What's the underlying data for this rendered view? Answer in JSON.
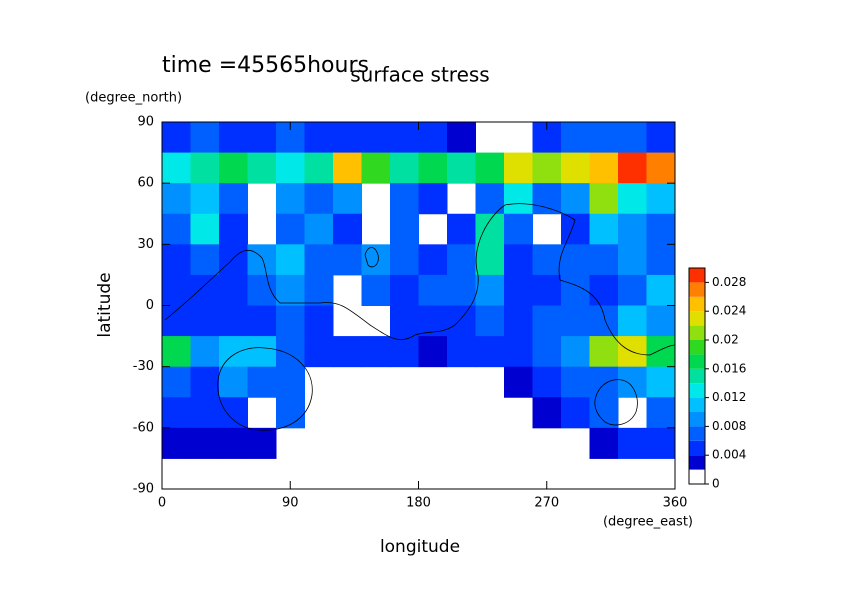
{
  "chart_data": {
    "type": "contour",
    "title": "surface stress",
    "subtitle": "time =45565hours",
    "x_label": "longitude",
    "y_label": "latitude",
    "x_units": "(degree_east)",
    "y_units": "(degree_north)",
    "xlim": [
      0,
      360
    ],
    "ylim": [
      -90,
      90
    ],
    "xticks": [
      0,
      90,
      180,
      270,
      360
    ],
    "yticks": [
      -90,
      -60,
      -30,
      0,
      30,
      60,
      90
    ],
    "x": [
      10,
      30,
      50,
      70,
      90,
      110,
      130,
      150,
      170,
      190,
      210,
      230,
      250,
      270,
      290,
      310,
      330,
      350
    ],
    "y": [
      82.5,
      67.5,
      52.5,
      37.5,
      22.5,
      7.5,
      -7.5,
      -22.5,
      -37.5,
      -52.5,
      -67.5,
      -82.5
    ],
    "z": [
      [
        0.005,
        0.006,
        0.005,
        0.005,
        0.006,
        0.005,
        0.004,
        0.004,
        0.005,
        0.004,
        0.003,
        null,
        null,
        0.005,
        0.006,
        0.007,
        0.006,
        0.005
      ],
      [
        0.012,
        0.014,
        0.016,
        0.014,
        0.012,
        0.014,
        0.024,
        0.018,
        0.014,
        0.016,
        0.014,
        0.016,
        0.022,
        0.02,
        0.022,
        0.024,
        0.03,
        0.026
      ],
      [
        0.008,
        0.01,
        0.006,
        null,
        0.008,
        0.006,
        0.008,
        null,
        0.006,
        0.005,
        null,
        0.006,
        0.012,
        0.006,
        0.008,
        0.02,
        0.012,
        0.01
      ],
      [
        0.006,
        0.012,
        0.004,
        null,
        0.006,
        0.008,
        0.004,
        null,
        0.006,
        null,
        0.004,
        0.014,
        0.006,
        null,
        0.004,
        0.01,
        0.008,
        0.006
      ],
      [
        0.004,
        0.006,
        0.004,
        0.008,
        0.01,
        0.006,
        0.006,
        0.008,
        0.006,
        0.004,
        0.006,
        0.014,
        0.004,
        0.006,
        0.006,
        0.006,
        0.008,
        0.006
      ],
      [
        0.004,
        0.004,
        0.005,
        0.006,
        0.008,
        0.006,
        null,
        0.006,
        0.004,
        0.006,
        0.006,
        0.008,
        0.004,
        0.004,
        0.006,
        0.004,
        0.006,
        0.01
      ],
      [
        0.004,
        0.004,
        0.004,
        0.004,
        0.006,
        0.004,
        null,
        null,
        0.004,
        0.004,
        0.005,
        0.006,
        0.004,
        0.006,
        0.006,
        0.006,
        0.01,
        0.008
      ],
      [
        0.016,
        0.008,
        0.01,
        0.01,
        0.006,
        0.004,
        0.004,
        0.004,
        0.004,
        0.003,
        0.004,
        0.004,
        0.004,
        0.006,
        0.008,
        0.02,
        0.022,
        0.016
      ],
      [
        0.006,
        0.004,
        0.008,
        0.006,
        0.006,
        null,
        null,
        null,
        null,
        null,
        null,
        null,
        0.003,
        0.004,
        0.006,
        0.006,
        0.008,
        0.01
      ],
      [
        0.004,
        0.004,
        0.005,
        null,
        0.006,
        null,
        null,
        null,
        null,
        null,
        null,
        null,
        null,
        0.003,
        0.004,
        0.006,
        null,
        0.006
      ],
      [
        0.003,
        0.003,
        0.003,
        0.003,
        null,
        null,
        null,
        null,
        null,
        null,
        null,
        null,
        null,
        null,
        null,
        0.003,
        0.004,
        0.004
      ],
      [
        null,
        null,
        null,
        null,
        null,
        null,
        null,
        null,
        null,
        null,
        null,
        null,
        null,
        null,
        null,
        null,
        null,
        null
      ]
    ],
    "colorbar": {
      "levels": [
        0,
        0.002,
        0.004,
        0.006,
        0.008,
        0.01,
        0.012,
        0.014,
        0.016,
        0.018,
        0.02,
        0.022,
        0.024,
        0.026,
        0.028,
        0.03
      ],
      "colors": [
        "#ffffff",
        "#0000d0",
        "#0030ff",
        "#0060ff",
        "#0090ff",
        "#00c0ff",
        "#00e8e8",
        "#00e0a0",
        "#00d850",
        "#30d820",
        "#90e010",
        "#e0e000",
        "#ffc000",
        "#ff8000",
        "#ff3000"
      ],
      "ticks": [
        0,
        0.004,
        0.008,
        0.012,
        0.016,
        0.02,
        0.024,
        0.028
      ]
    }
  }
}
